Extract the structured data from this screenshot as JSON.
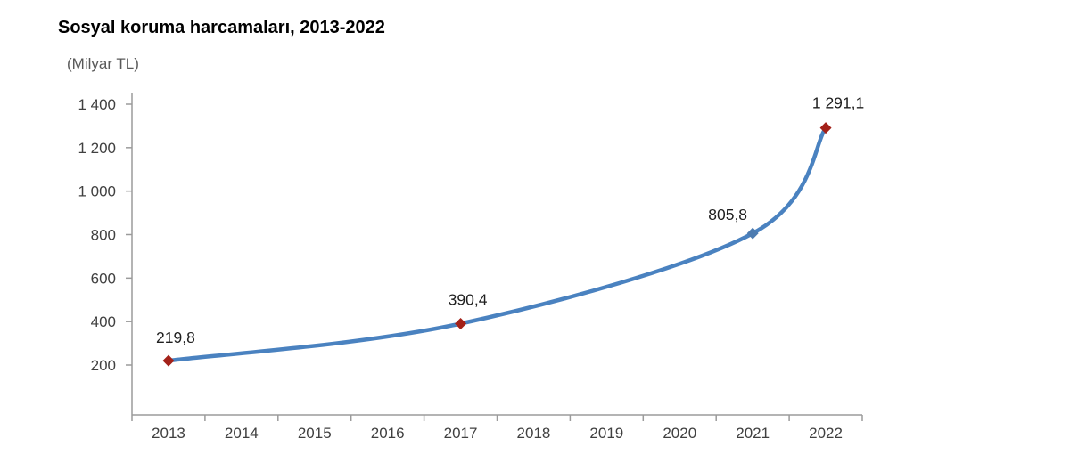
{
  "page": {
    "title": "Sosyal koruma harcamaları, 2013-2022",
    "unit_label": "(Milyar TL)"
  },
  "chart_data": {
    "type": "line",
    "title": "Sosyal koruma harcamaları, 2013-2022",
    "ylabel": "(Milyar TL)",
    "xlabel": "",
    "categories": [
      "2013",
      "2014",
      "2015",
      "2016",
      "2017",
      "2018",
      "2019",
      "2020",
      "2021",
      "2022"
    ],
    "series": [
      {
        "name": "Sosyal koruma harcamaları (Milyar TL)",
        "smoothed": true,
        "line_color": "#4a82c0",
        "points": [
          {
            "category": "2013",
            "value": 219.8,
            "label": "219,8",
            "marker": "diamond",
            "marker_color": "#a32119"
          },
          {
            "category": "2017",
            "value": 390.4,
            "label": "390,4",
            "marker": "diamond",
            "marker_color": "#a32119"
          },
          {
            "category": "2021",
            "value": 805.8,
            "label": "805,8",
            "marker": "diamond",
            "marker_color": "#4c7bb0"
          },
          {
            "category": "2022",
            "value": 1291.1,
            "label": "1 291,1",
            "marker": "diamond",
            "marker_color": "#a32119"
          }
        ]
      }
    ],
    "y_axis": {
      "ticks": [
        {
          "value": 200,
          "label": "200"
        },
        {
          "value": 400,
          "label": "400"
        },
        {
          "value": 600,
          "label": "600"
        },
        {
          "value": 800,
          "label": "800"
        },
        {
          "value": 1000,
          "label": "1 000"
        },
        {
          "value": 1200,
          "label": "1 200"
        },
        {
          "value": 1400,
          "label": "1 400"
        }
      ],
      "range": [
        0,
        1480
      ]
    },
    "grid": "off",
    "legend": "none",
    "label_offsets": {
      "2013": [
        8,
        -26
      ],
      "2017": [
        8,
        -27
      ],
      "2021": [
        -28,
        -21
      ],
      "2022": [
        14,
        -28
      ]
    },
    "colors": {
      "axis": "#9b9b9b",
      "tick_label": "#404040",
      "data_label": "#1f1f1f",
      "title": "#000000",
      "unit_label": "#595959"
    }
  }
}
